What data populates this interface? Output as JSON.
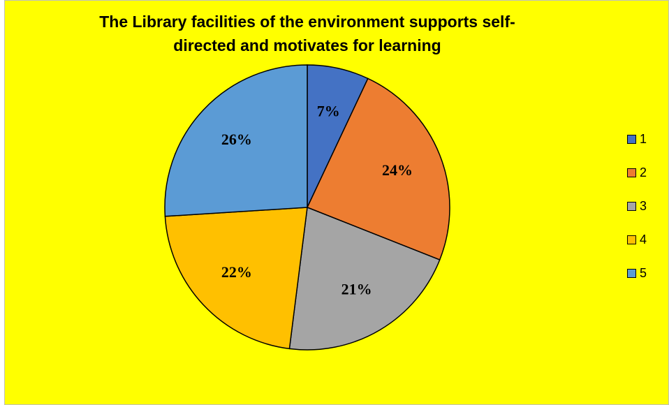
{
  "chart_data": {
    "type": "pie",
    "title": "The Library facilities of the environment supports self-directed and motivates for learning",
    "categories": [
      "1",
      "2",
      "3",
      "4",
      "5"
    ],
    "values": [
      7,
      24,
      21,
      22,
      26
    ],
    "labels": [
      "7%",
      "24%",
      "21%",
      "22%",
      "26%"
    ],
    "colors": [
      "#4472C4",
      "#ED7D31",
      "#A5A5A5",
      "#FFC000",
      "#5B9BD5"
    ],
    "legend_position": "right",
    "background": "#FFFF00"
  }
}
